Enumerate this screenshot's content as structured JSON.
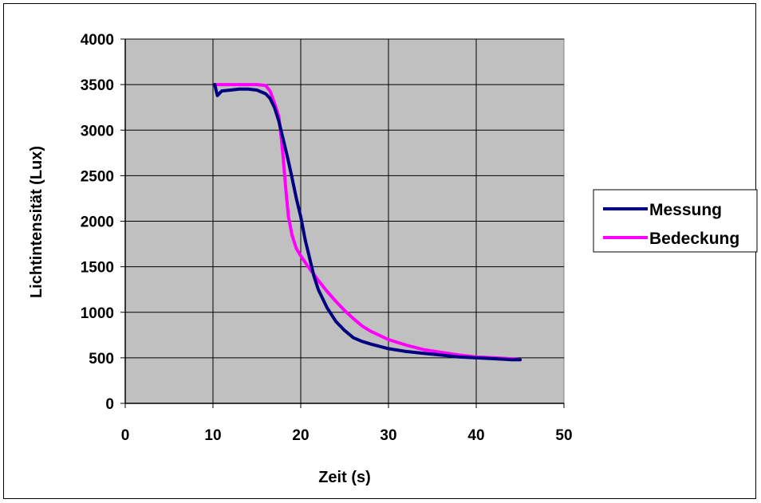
{
  "chart_data": {
    "type": "line",
    "title": "",
    "xlabel": "Zeit (s)",
    "ylabel": "Lichtintensität (Lux)",
    "xlim": [
      0,
      50
    ],
    "ylim": [
      0,
      4000
    ],
    "xticks": [
      "0",
      "10",
      "20",
      "30",
      "40",
      "50"
    ],
    "yticks": [
      "0",
      "500",
      "1000",
      "1500",
      "2000",
      "2500",
      "3000",
      "3500",
      "4000"
    ],
    "grid": true,
    "plot_background": "#c0c0c0",
    "legend_position": "right",
    "series": [
      {
        "name": "Messung",
        "color": "#000080",
        "x": [
          10.2,
          10.5,
          11,
          12,
          13,
          14,
          15,
          16,
          16.5,
          17,
          17.5,
          18,
          18.5,
          19,
          19.5,
          20,
          20.5,
          21,
          21.5,
          22,
          23,
          24,
          25,
          26,
          27,
          28,
          30,
          32,
          34,
          36,
          38,
          40,
          42,
          44,
          45
        ],
        "y": [
          3500,
          3380,
          3430,
          3440,
          3450,
          3450,
          3440,
          3400,
          3350,
          3250,
          3100,
          2900,
          2700,
          2480,
          2250,
          2050,
          1800,
          1600,
          1400,
          1250,
          1050,
          900,
          800,
          720,
          680,
          650,
          600,
          570,
          550,
          530,
          510,
          500,
          490,
          480,
          480
        ]
      },
      {
        "name": "Bedeckung",
        "color": "#ff00ff",
        "x": [
          10.2,
          11,
          12,
          13,
          14,
          15,
          16,
          16.5,
          17,
          17.5,
          17.8,
          18,
          18.3,
          18.6,
          19,
          19.5,
          20,
          21,
          22,
          23,
          24,
          25,
          26,
          27,
          28,
          30,
          32,
          34,
          36,
          38,
          40,
          42,
          44,
          45
        ],
        "y": [
          3500,
          3500,
          3500,
          3500,
          3500,
          3500,
          3490,
          3430,
          3300,
          3150,
          2900,
          2700,
          2350,
          2050,
          1850,
          1700,
          1620,
          1480,
          1350,
          1230,
          1120,
          1020,
          930,
          850,
          790,
          700,
          640,
          590,
          560,
          530,
          510,
          500,
          490,
          480
        ]
      }
    ]
  }
}
